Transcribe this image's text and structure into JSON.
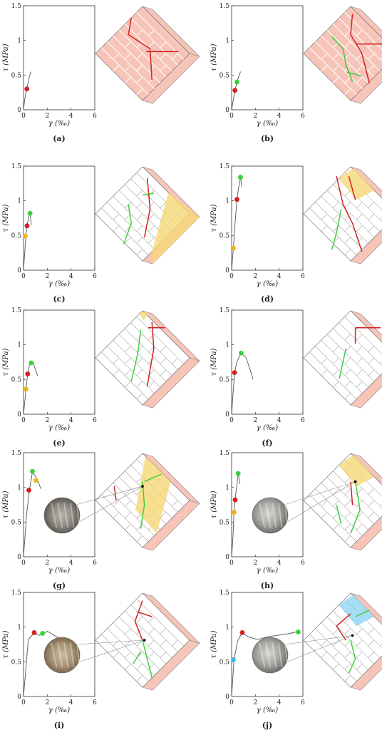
{
  "figure": {
    "colors": {
      "peak": "#3ccf3c",
      "crack": "#d42020",
      "yellow": "#f0b21c",
      "cyan": "#39b7e6",
      "brick_pink": "#f6c4b8",
      "mortar": "#d8d8d8",
      "fill_yellow": "#f6d877",
      "fill_cyan": "#8fd6f3"
    },
    "axes_common": {
      "xlim": [
        0,
        6
      ],
      "ylim": [
        0,
        1.5
      ],
      "xticks": [
        "0",
        "2",
        "4",
        "6"
      ],
      "yticks": [
        "0",
        "0.5",
        "1",
        "1.5"
      ],
      "xlabel": "γ (‰)",
      "ylabel": "τ (MPa)"
    }
  },
  "chart_data": [
    {
      "type": "line",
      "caption": "(a)",
      "xlim": [
        0,
        6
      ],
      "ylim": [
        0,
        1.5
      ],
      "curve": [
        [
          0,
          0
        ],
        [
          0.1,
          0.15
        ],
        [
          0.2,
          0.25
        ],
        [
          0.28,
          0.3
        ],
        [
          0.45,
          0.45
        ],
        [
          0.62,
          0.55
        ]
      ],
      "markers": [
        {
          "color": "crack",
          "x": 0.28,
          "y": 0.3
        }
      ],
      "cracks": {
        "red": [
          [
            0.38,
            0.12,
            0.35,
            0.3,
            0.58,
            0.45,
            0.6,
            0.78
          ],
          [
            0.54,
            0.48,
            0.88,
            0.48
          ]
        ],
        "green": [],
        "fill": null
      },
      "inset": null
    },
    {
      "type": "line",
      "caption": "(b)",
      "xlim": [
        0,
        6
      ],
      "ylim": [
        0,
        1.5
      ],
      "curve": [
        [
          0,
          0
        ],
        [
          0.15,
          0.15
        ],
        [
          0.28,
          0.28
        ],
        [
          0.45,
          0.4
        ],
        [
          0.6,
          0.48
        ],
        [
          0.75,
          0.55
        ]
      ],
      "markers": [
        {
          "color": "crack",
          "x": 0.28,
          "y": 0.28
        },
        {
          "color": "peak",
          "x": 0.45,
          "y": 0.4
        }
      ],
      "cracks": {
        "red": [
          [
            0.52,
            0.08,
            0.5,
            0.3,
            0.62,
            0.5,
            0.7,
            0.82
          ],
          [
            0.56,
            0.4,
            0.84,
            0.4
          ]
        ],
        "green": [
          [
            0.3,
            0.32,
            0.42,
            0.45,
            0.45,
            0.62,
            0.52,
            0.8
          ],
          [
            0.46,
            0.7,
            0.62,
            0.74
          ]
        ],
        "fill": null
      },
      "inset": null
    },
    {
      "type": "line",
      "caption": "(c)",
      "xlim": [
        0,
        6
      ],
      "ylim": [
        0,
        1.5
      ],
      "curve": [
        [
          0,
          0
        ],
        [
          0.12,
          0.3
        ],
        [
          0.2,
          0.5
        ],
        [
          0.3,
          0.64
        ],
        [
          0.45,
          0.78
        ],
        [
          0.55,
          0.82
        ],
        [
          0.65,
          0.65
        ]
      ],
      "markers": [
        {
          "color": "yellow",
          "x": 0.15,
          "y": 0.49
        },
        {
          "color": "crack",
          "x": 0.3,
          "y": 0.64
        },
        {
          "color": "peak",
          "x": 0.55,
          "y": 0.82
        }
      ],
      "cracks": {
        "red": [
          [
            0.55,
            0.12,
            0.58,
            0.45,
            0.52,
            0.75
          ]
        ],
        "green": [
          [
            0.35,
            0.4,
            0.38,
            0.6,
            0.3,
            0.82
          ],
          [
            0.5,
            0.3,
            0.62,
            0.28
          ]
        ],
        "fill": {
          "color": "fill_yellow",
          "region": "right"
        }
      },
      "inset": null
    },
    {
      "type": "line",
      "caption": "(d)",
      "xlim": [
        0,
        6
      ],
      "ylim": [
        0,
        1.5
      ],
      "curve": [
        [
          0,
          0
        ],
        [
          0.15,
          0.32
        ],
        [
          0.3,
          0.7
        ],
        [
          0.45,
          1.02
        ],
        [
          0.6,
          1.2
        ],
        [
          0.75,
          1.34
        ],
        [
          0.85,
          1.2
        ]
      ],
      "markers": [
        {
          "color": "yellow",
          "x": 0.15,
          "y": 0.32
        },
        {
          "color": "crack",
          "x": 0.45,
          "y": 1.02
        },
        {
          "color": "peak",
          "x": 0.75,
          "y": 1.34
        }
      ],
      "cracks": {
        "red": [
          [
            0.35,
            0.1,
            0.42,
            0.4,
            0.52,
            0.6,
            0.62,
            0.9
          ],
          [
            0.48,
            0.1,
            0.55,
            0.35
          ]
        ],
        "green": [
          [
            0.4,
            0.45,
            0.35,
            0.7,
            0.3,
            0.88
          ]
        ],
        "fill": {
          "color": "fill_yellow",
          "region": "top"
        }
      },
      "inset": null
    },
    {
      "type": "line",
      "caption": "(e)",
      "xlim": [
        0,
        6
      ],
      "ylim": [
        0,
        1.5
      ],
      "curve": [
        [
          0,
          0
        ],
        [
          0.12,
          0.2
        ],
        [
          0.2,
          0.36
        ],
        [
          0.35,
          0.58
        ],
        [
          0.5,
          0.7
        ],
        [
          0.65,
          0.74
        ],
        [
          0.85,
          0.72
        ],
        [
          1.2,
          0.55
        ]
      ],
      "markers": [
        {
          "color": "yellow",
          "x": 0.2,
          "y": 0.36
        },
        {
          "color": "crack",
          "x": 0.35,
          "y": 0.58
        },
        {
          "color": "peak",
          "x": 0.65,
          "y": 0.74
        }
      ],
      "cracks": {
        "red": [
          [
            0.6,
            0.12,
            0.62,
            0.4,
            0.55,
            0.8
          ],
          [
            0.56,
            0.18,
            0.74,
            0.18
          ]
        ],
        "green": [
          [
            0.48,
            0.2,
            0.45,
            0.45,
            0.38,
            0.75
          ]
        ],
        "fill": {
          "color": "fill_yellow",
          "region": "top-small"
        }
      },
      "inset": null
    },
    {
      "type": "line",
      "caption": "(f)",
      "xlim": [
        0,
        6
      ],
      "ylim": [
        0,
        1.5
      ],
      "curve": [
        [
          0,
          0
        ],
        [
          0.12,
          0.3
        ],
        [
          0.25,
          0.6
        ],
        [
          0.45,
          0.76
        ],
        [
          0.8,
          0.88
        ],
        [
          1.2,
          0.82
        ],
        [
          1.6,
          0.62
        ],
        [
          1.8,
          0.5
        ]
      ],
      "markers": [
        {
          "color": "crack",
          "x": 0.25,
          "y": 0.6
        },
        {
          "color": "peak",
          "x": 0.8,
          "y": 0.88
        }
      ],
      "cracks": {
        "red": [
          [
            0.55,
            0.18,
            0.55,
            0.35
          ],
          [
            0.55,
            0.18,
            0.82,
            0.18
          ]
        ],
        "green": [
          [
            0.45,
            0.4,
            0.38,
            0.72
          ]
        ],
        "fill": null
      },
      "inset": null
    },
    {
      "type": "line",
      "caption": "(g)",
      "xlim": [
        0,
        6
      ],
      "ylim": [
        0,
        1.5
      ],
      "curve": [
        [
          0,
          0
        ],
        [
          0.25,
          0.6
        ],
        [
          0.5,
          0.96
        ],
        [
          0.75,
          1.22
        ],
        [
          1,
          1.16
        ],
        [
          1.25,
          1.08
        ],
        [
          1.45,
          0.98
        ]
      ],
      "markers": [
        {
          "color": "crack",
          "x": 0.45,
          "y": 0.96
        },
        {
          "color": "peak",
          "x": 0.75,
          "y": 1.23
        },
        {
          "color": "yellow",
          "x": 1.05,
          "y": 1.1
        }
      ],
      "cracks": {
        "red": [
          [
            0.2,
            0.35,
            0.22,
            0.5
          ]
        ],
        "green": [
          [
            0.5,
            0.3,
            0.52,
            0.55,
            0.48,
            0.8
          ],
          [
            0.52,
            0.3,
            0.7,
            0.22
          ]
        ],
        "fill": {
          "color": "fill_yellow",
          "region": "center-strip"
        }
      },
      "inset": {
        "photo": "rough",
        "dot": [
          0.5,
          0.35
        ]
      }
    },
    {
      "type": "line",
      "caption": "(h)",
      "xlim": [
        0,
        6
      ],
      "ylim": [
        0,
        1.5
      ],
      "curve": [
        [
          0,
          0
        ],
        [
          0.12,
          0.3
        ],
        [
          0.2,
          0.64
        ],
        [
          0.28,
          0.82
        ],
        [
          0.42,
          1
        ],
        [
          0.55,
          1.2
        ],
        [
          0.7,
          1.05
        ]
      ],
      "markers": [
        {
          "color": "yellow",
          "x": 0.2,
          "y": 0.64
        },
        {
          "color": "crack",
          "x": 0.3,
          "y": 0.82
        },
        {
          "color": "peak",
          "x": 0.55,
          "y": 1.2
        }
      ],
      "cracks": {
        "red": [
          [
            0.5,
            0.3,
            0.52,
            0.55
          ]
        ],
        "green": [
          [
            0.55,
            0.3,
            0.6,
            0.6,
            0.5,
            0.85
          ],
          [
            0.35,
            0.55,
            0.4,
            0.75
          ]
        ],
        "fill": {
          "color": "fill_yellow",
          "region": "top"
        }
      },
      "inset": {
        "photo": "gray",
        "dot": [
          0.55,
          0.3
        ]
      }
    },
    {
      "type": "line",
      "caption": "(i)",
      "xlim": [
        0,
        6
      ],
      "ylim": [
        0,
        1.5
      ],
      "curve": [
        [
          0,
          0
        ],
        [
          0.4,
          0.82
        ],
        [
          0.9,
          0.92
        ],
        [
          1.3,
          0.88
        ],
        [
          1.6,
          0.9
        ],
        [
          2,
          0.94
        ],
        [
          2.6,
          0.88
        ],
        [
          3,
          0.84
        ],
        [
          3.6,
          0.78
        ],
        [
          3.9,
          0.72
        ]
      ],
      "markers": [
        {
          "color": "crack",
          "x": 0.9,
          "y": 0.92
        },
        {
          "color": "peak",
          "x": 1.6,
          "y": 0.91
        }
      ],
      "cracks": {
        "red": [
          [
            0.5,
            0.08,
            0.42,
            0.3,
            0.5,
            0.5
          ],
          [
            0.45,
            0.2,
            0.6,
            0.25
          ]
        ],
        "green": [
          [
            0.5,
            0.5,
            0.55,
            0.7,
            0.6,
            0.9
          ],
          [
            0.48,
            0.62,
            0.4,
            0.75
          ]
        ],
        "fill": null
      },
      "inset": {
        "photo": "warm",
        "dot": [
          0.52,
          0.5
        ]
      }
    },
    {
      "type": "line",
      "caption": "(j)",
      "xlim": [
        0,
        6
      ],
      "ylim": [
        0,
        1.5
      ],
      "curve": [
        [
          0,
          0
        ],
        [
          0.2,
          0.52
        ],
        [
          0.5,
          0.8
        ],
        [
          0.9,
          0.92
        ],
        [
          1.4,
          0.86
        ],
        [
          2.2,
          0.82
        ],
        [
          3,
          0.86
        ],
        [
          3.8,
          0.88
        ],
        [
          4.6,
          0.9
        ],
        [
          5.2,
          0.92
        ],
        [
          5.6,
          0.94
        ],
        [
          5.8,
          0.92
        ]
      ],
      "markers": [
        {
          "color": "cyan",
          "x": 0.15,
          "y": 0.53
        },
        {
          "color": "crack",
          "x": 0.9,
          "y": 0.92
        },
        {
          "color": "peak",
          "x": 5.6,
          "y": 0.93
        }
      ],
      "cracks": {
        "red": [
          [
            0.5,
            0.22,
            0.35,
            0.35,
            0.45,
            0.5
          ]
        ],
        "green": [
          [
            0.5,
            0.5,
            0.55,
            0.7,
            0.48,
            0.85
          ],
          [
            0.55,
            0.25,
            0.7,
            0.18
          ]
        ],
        "fill": {
          "color": "fill_cyan",
          "region": "top"
        }
      },
      "inset": {
        "photo": "gray",
        "dot": [
          0.52,
          0.45
        ]
      }
    }
  ]
}
